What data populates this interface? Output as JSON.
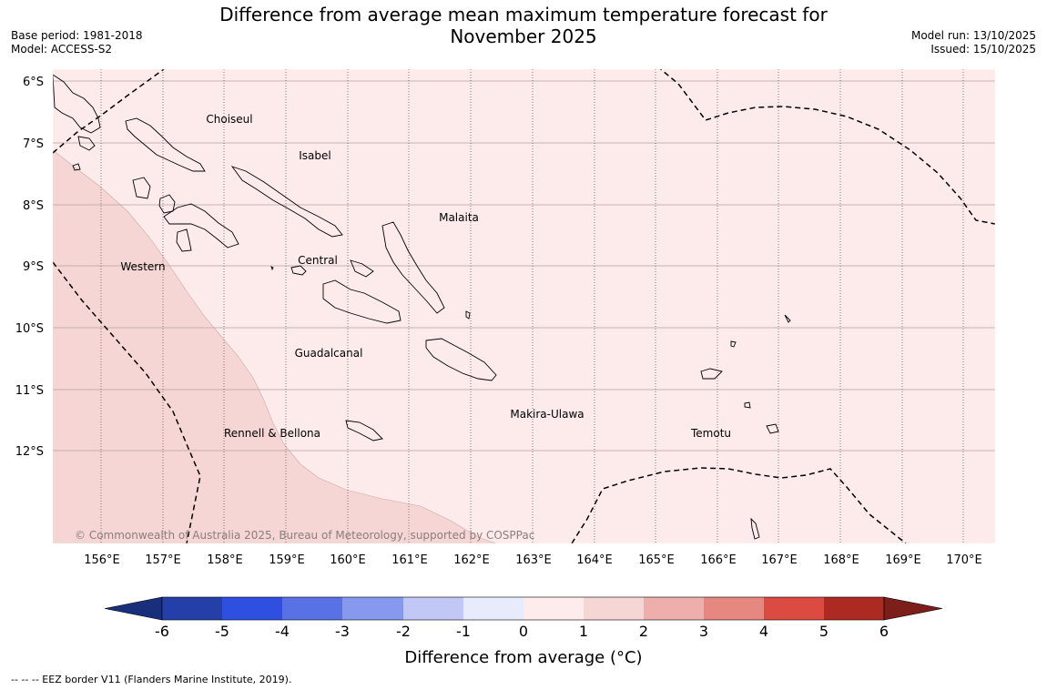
{
  "header": {
    "title_line1": "Difference from average mean maximum temperature forecast for",
    "title_line2": "November 2025",
    "base_period": "Base period: 1981-2018",
    "model": "Model: ACCESS-S2",
    "model_run": "Model run: 13/10/2025",
    "issued": "Issued: 15/10/2025"
  },
  "map": {
    "lat_labels": [
      "6°S",
      "7°S",
      "8°S",
      "9°S",
      "10°S",
      "11°S",
      "12°S"
    ],
    "lon_labels": [
      "156°E",
      "157°E",
      "158°E",
      "159°E",
      "160°E",
      "161°E",
      "162°E",
      "163°E",
      "164°E",
      "165°E",
      "166°E",
      "167°E",
      "168°E",
      "169°E",
      "170°E"
    ],
    "province_labels": [
      "Choiseul",
      "Isabel",
      "Malaita",
      "Western",
      "Central",
      "Guadalcanal",
      "Makira-Ulawa",
      "Rennell & Bellona",
      "Temotu"
    ],
    "copyright": "© Commonwealth of Australia 2025, Bureau of Meteorology, supported by COSPPac",
    "colors": {
      "anomaly_0_1": "#fcebea",
      "anomaly_1_2": "#f6d6d4",
      "coast": "#000000",
      "gridline": "#b69fa0"
    }
  },
  "colorbar": {
    "label": "Difference from average (°C)",
    "ticks": [
      "-6",
      "-5",
      "-4",
      "-3",
      "-2",
      "-1",
      "0",
      "1",
      "2",
      "3",
      "4",
      "5",
      "6"
    ],
    "colors": [
      "#2440a8",
      "#2f4fe0",
      "#5872e6",
      "#8799ee",
      "#c1c8f5",
      "#e8ebfc",
      "#fdeceb",
      "#f6d6d4",
      "#eeaeab",
      "#e68780",
      "#db4b41",
      "#ad2a23"
    ],
    "under_color": "#1a2f7c",
    "over_color": "#7c1f1a"
  },
  "footer": {
    "eez_note": "--  --  -- EEZ border V11 (Flanders Marine Institute, 2019)."
  }
}
